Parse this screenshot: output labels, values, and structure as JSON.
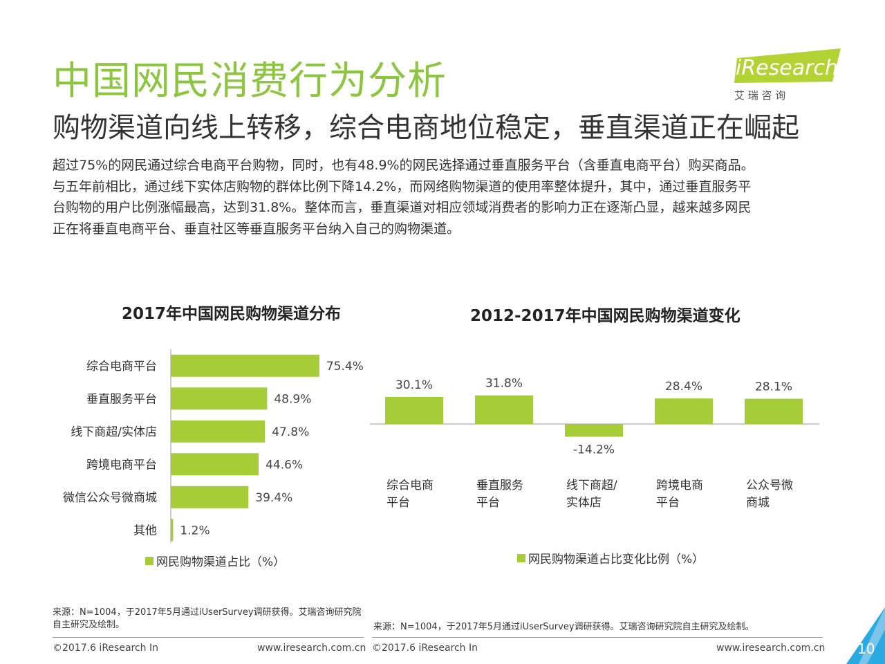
{
  "header": {
    "title": "中国网民消费行为分析",
    "subtitle": "购物渠道向线上转移，综合电商地位稳定，垂直渠道正在崛起",
    "paragraph": [
      "超过75%的网民通过综合电商平台购物，同时，也有48.9%的网民选择通过垂直服务平台（含垂直电商平台）购买商品。",
      "与五年前相比，通过线下实体店购物的群体比例下降14.2%，而网络购物渠道的使用率整体提升，其中，通过垂直服务平",
      "台购物的用户比例涨幅最高，达到31.8%。整体而言，垂直渠道对相应领域消费者的影响力正在逐渐凸显，越来越多网民",
      "正在将垂直电商平台、垂直社区等垂直服务平台纳入自己的购物渠道。"
    ]
  },
  "logo": {
    "brand": "iResearch",
    "cn": "艾  瑞  咨  询",
    "accent": "#b3d335"
  },
  "colors": {
    "bar": "#a6cc38",
    "title": "#8cc63f"
  },
  "chart_data": [
    {
      "type": "bar",
      "orientation": "horizontal",
      "title": "2017年中国网民购物渠道分布",
      "categories": [
        "综合电商平台",
        "垂直服务平台",
        "线下商超/实体店",
        "跨境电商平台",
        "微信公众号微商城",
        "其他"
      ],
      "series": [
        {
          "name": "网民购物渠道占比（%）",
          "values": [
            75.4,
            48.9,
            47.8,
            44.6,
            39.4,
            1.2
          ]
        }
      ],
      "value_labels": [
        "75.4%",
        "48.9%",
        "47.8%",
        "44.6%",
        "39.4%",
        "1.2%"
      ],
      "legend": "bottom"
    },
    {
      "type": "bar",
      "orientation": "vertical",
      "title": "2012-2017年中国网民购物渠道变化",
      "categories": [
        [
          "综合电商",
          "平台"
        ],
        [
          "垂直服务",
          "平台"
        ],
        [
          "线下商超/",
          "实体店"
        ],
        [
          "跨境电商",
          "平台"
        ],
        [
          "公众号微",
          "商城"
        ]
      ],
      "series": [
        {
          "name": "网民购物渠道占比变化比例（%）",
          "values": [
            30.1,
            31.8,
            -14.2,
            28.4,
            28.1
          ]
        }
      ],
      "value_labels": [
        "30.1%",
        "31.8%",
        "-14.2%",
        "28.4%",
        "28.1%"
      ],
      "legend": "bottom"
    }
  ],
  "sources": {
    "left": "来源：N=1004，于2017年5月通过iUserSurvey调研获得。艾瑞咨询研究院自主研究及绘制。",
    "right": "来源：N=1004，于2017年5月通过iUserSurvey调研获得。艾瑞咨询研究院自主研究及绘制。"
  },
  "footer": {
    "copyright_left": "©2017.6 iResearch In",
    "site_left": "www.iresearch.com.cn",
    "copyright_right": "©2017.6 iResearch In",
    "site_right": "www.iresearch.com.cn",
    "page_number": "10"
  }
}
